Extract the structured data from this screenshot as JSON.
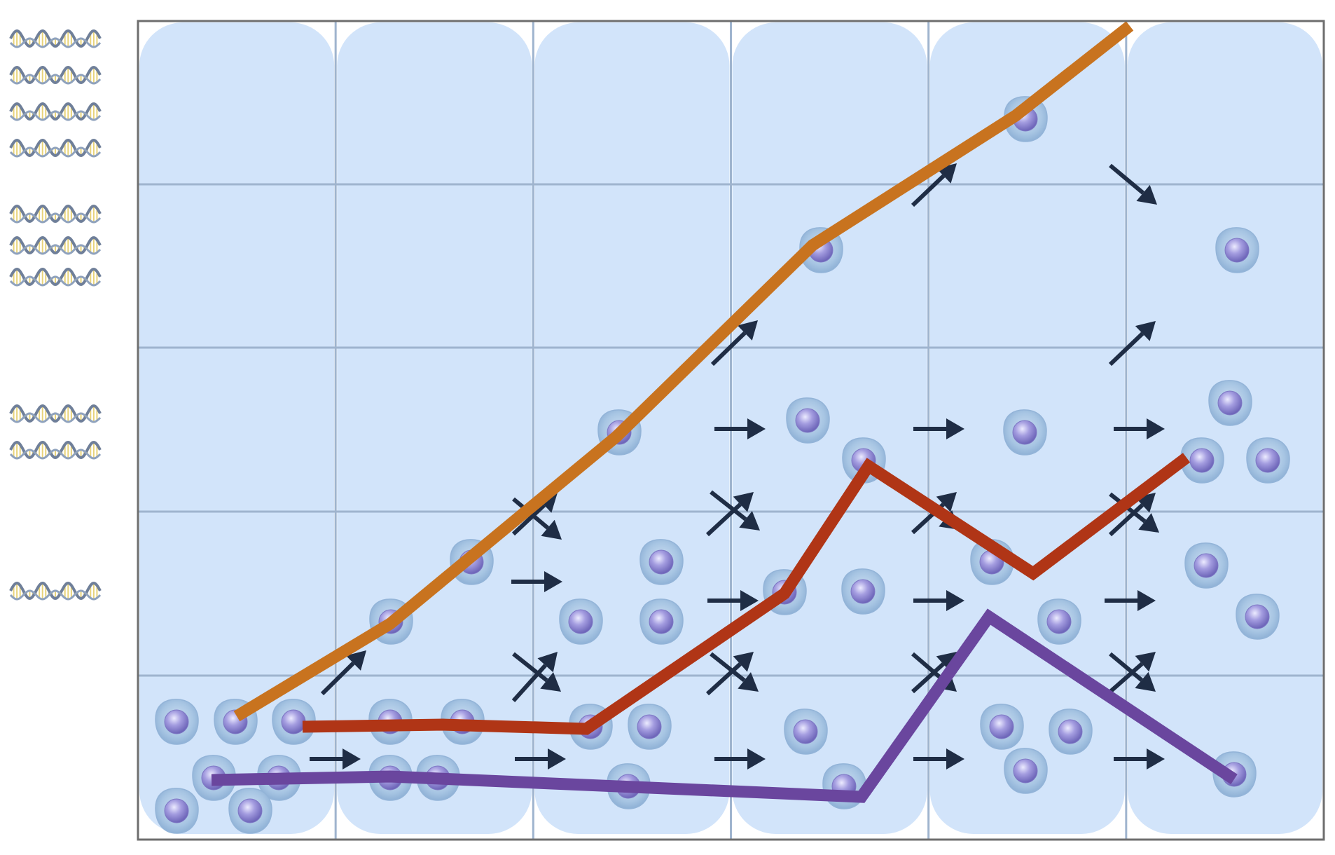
{
  "diagram": {
    "columns": 6,
    "rows": 5,
    "colors": {
      "background": "#ffffff",
      "panel_fill": "#d2e4fa",
      "grid_line": "#9fb4ce",
      "frame": "#6e6e6e",
      "arrow": "#1f2d45",
      "cell_outer": "#a7c5e3",
      "cell_nucleus": "#8a83c8",
      "dna_strand": "#6f7f99",
      "dna_rung": "#e8d37a"
    },
    "dna_levels": [
      {
        "row": "top",
        "helix_count": 4
      },
      {
        "row": "second",
        "helix_count": 3
      },
      {
        "row": "third",
        "helix_count": 2
      },
      {
        "row": "fourth",
        "helix_count": 1
      }
    ],
    "lines": [
      {
        "name": "",
        "color": "#c8731f",
        "role": "orange-line"
      },
      {
        "name": "",
        "color": "#b03516",
        "role": "red-line"
      },
      {
        "name": "",
        "color": "#6a469e",
        "role": "purple-line"
      }
    ]
  }
}
